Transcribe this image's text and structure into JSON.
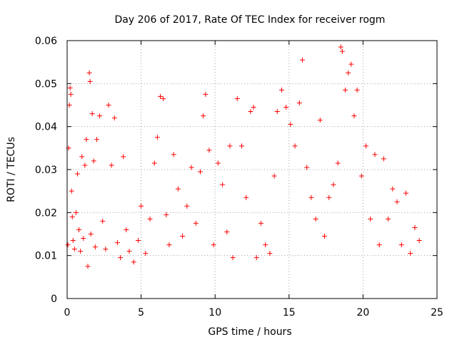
{
  "chart_data": {
    "type": "scatter",
    "title": "Day 206 of 2017, Rate Of TEC Index for receiver rogm",
    "xlabel": "GPS time / hours",
    "ylabel": "ROTI / TECUs",
    "xlim": [
      0,
      25
    ],
    "ylim": [
      0,
      0.06
    ],
    "xticks": [
      "0",
      "5",
      "10",
      "15",
      "20",
      "25"
    ],
    "yticks": [
      "0",
      "0.01",
      "0.02",
      "0.03",
      "0.04",
      "0.05",
      "0.06"
    ],
    "grid": true,
    "marker": "+",
    "color": "#ff0000",
    "series": [
      {
        "points": [
          [
            0.05,
            0.0125
          ],
          [
            0.1,
            0.035
          ],
          [
            0.15,
            0.045
          ],
          [
            0.2,
            0.049
          ],
          [
            0.25,
            0.0475
          ],
          [
            0.3,
            0.025
          ],
          [
            0.35,
            0.019
          ],
          [
            0.4,
            0.0135
          ],
          [
            0.5,
            0.0115
          ],
          [
            0.6,
            0.02
          ],
          [
            0.7,
            0.029
          ],
          [
            0.8,
            0.016
          ],
          [
            0.9,
            0.011
          ],
          [
            1.0,
            0.033
          ],
          [
            1.1,
            0.014
          ],
          [
            1.2,
            0.031
          ],
          [
            1.3,
            0.037
          ],
          [
            1.4,
            0.0075
          ],
          [
            1.5,
            0.0525
          ],
          [
            1.55,
            0.0505
          ],
          [
            1.6,
            0.015
          ],
          [
            1.7,
            0.043
          ],
          [
            1.8,
            0.032
          ],
          [
            1.9,
            0.012
          ],
          [
            2.0,
            0.037
          ],
          [
            2.2,
            0.0425
          ],
          [
            2.4,
            0.018
          ],
          [
            2.6,
            0.0115
          ],
          [
            2.8,
            0.045
          ],
          [
            3.0,
            0.031
          ],
          [
            3.2,
            0.042
          ],
          [
            3.4,
            0.013
          ],
          [
            3.6,
            0.0095
          ],
          [
            3.8,
            0.033
          ],
          [
            4.0,
            0.016
          ],
          [
            4.2,
            0.011
          ],
          [
            4.5,
            0.0085
          ],
          [
            4.8,
            0.0135
          ],
          [
            5.0,
            0.0215
          ],
          [
            5.3,
            0.0105
          ],
          [
            5.6,
            0.0185
          ],
          [
            5.9,
            0.0315
          ],
          [
            6.1,
            0.0375
          ],
          [
            6.3,
            0.047
          ],
          [
            6.5,
            0.0465
          ],
          [
            6.7,
            0.0195
          ],
          [
            6.9,
            0.0125
          ],
          [
            7.2,
            0.0335
          ],
          [
            7.5,
            0.0255
          ],
          [
            7.8,
            0.0145
          ],
          [
            8.1,
            0.0215
          ],
          [
            8.4,
            0.0305
          ],
          [
            8.7,
            0.0175
          ],
          [
            9.0,
            0.0295
          ],
          [
            9.2,
            0.0425
          ],
          [
            9.35,
            0.0475
          ],
          [
            9.6,
            0.0345
          ],
          [
            9.9,
            0.0125
          ],
          [
            10.2,
            0.0315
          ],
          [
            10.5,
            0.0265
          ],
          [
            10.8,
            0.0155
          ],
          [
            11.0,
            0.0355
          ],
          [
            11.2,
            0.0095
          ],
          [
            11.5,
            0.0465
          ],
          [
            11.8,
            0.0355
          ],
          [
            12.1,
            0.0235
          ],
          [
            12.4,
            0.0435
          ],
          [
            12.6,
            0.0445
          ],
          [
            12.8,
            0.0095
          ],
          [
            13.1,
            0.0175
          ],
          [
            13.4,
            0.0125
          ],
          [
            13.7,
            0.0105
          ],
          [
            14.0,
            0.0285
          ],
          [
            14.2,
            0.0435
          ],
          [
            14.5,
            0.0485
          ],
          [
            14.8,
            0.0445
          ],
          [
            15.1,
            0.0405
          ],
          [
            15.4,
            0.0355
          ],
          [
            15.7,
            0.0455
          ],
          [
            15.9,
            0.0555
          ],
          [
            16.2,
            0.0305
          ],
          [
            16.5,
            0.0235
          ],
          [
            16.8,
            0.0185
          ],
          [
            17.1,
            0.0415
          ],
          [
            17.4,
            0.0145
          ],
          [
            17.7,
            0.0235
          ],
          [
            18.0,
            0.0265
          ],
          [
            18.3,
            0.0315
          ],
          [
            18.5,
            0.0585
          ],
          [
            18.6,
            0.0575
          ],
          [
            18.8,
            0.0485
          ],
          [
            19.0,
            0.0525
          ],
          [
            19.2,
            0.0545
          ],
          [
            19.4,
            0.0425
          ],
          [
            19.6,
            0.0485
          ],
          [
            19.9,
            0.0285
          ],
          [
            20.2,
            0.0355
          ],
          [
            20.5,
            0.0185
          ],
          [
            20.8,
            0.0335
          ],
          [
            21.1,
            0.0125
          ],
          [
            21.4,
            0.0325
          ],
          [
            21.7,
            0.0185
          ],
          [
            22.0,
            0.0255
          ],
          [
            22.3,
            0.0225
          ],
          [
            22.6,
            0.0125
          ],
          [
            22.9,
            0.0245
          ],
          [
            23.2,
            0.0105
          ],
          [
            23.5,
            0.0165
          ],
          [
            23.8,
            0.0135
          ]
        ]
      }
    ]
  }
}
